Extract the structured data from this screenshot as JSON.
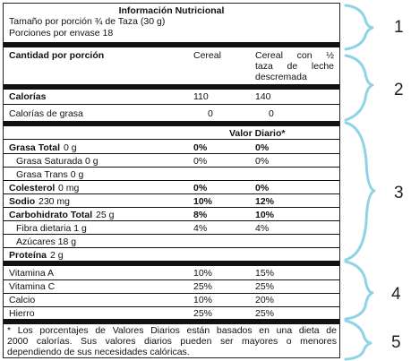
{
  "header": {
    "title": "Información Nutricional",
    "serving_size": "Tamaño por porción ¾ de Taza (30 g)",
    "servings": "Porciones por envase 18"
  },
  "columns": {
    "amount": "Cantidad por porción",
    "cereal": "Cereal",
    "cereal_milk_1": "Cereal con ½",
    "cereal_milk_2": "taza de leche",
    "cereal_milk_3": "descremada"
  },
  "calories": {
    "label": "Calorías",
    "cereal": "110",
    "milk": "140",
    "fat_label": "Calorías de grasa",
    "fat_cereal": "0",
    "fat_milk": "0"
  },
  "daily_value_header": "Valor Diario*",
  "nutrients": [
    {
      "name": "Grasa Total",
      "amount": "0 g",
      "cereal": "0%",
      "milk": "0%",
      "bold": true,
      "indent": false
    },
    {
      "name": "Grasa Saturada 0 g",
      "amount": "",
      "cereal": "0%",
      "milk": "0%",
      "bold": false,
      "indent": true
    },
    {
      "name": "Grasa Trans 0 g",
      "amount": "",
      "cereal": "",
      "milk": "",
      "bold": false,
      "indent": true
    },
    {
      "name": "Colesterol",
      "amount": "0 mg",
      "cereal": "0%",
      "milk": "0%",
      "bold": true,
      "indent": false
    },
    {
      "name": "Sodio",
      "amount": "230 mg",
      "cereal": "10%",
      "milk": "12%",
      "bold": true,
      "indent": false
    },
    {
      "name": "Carbohidrato Total",
      "amount": "25 g",
      "cereal": "8%",
      "milk": "10%",
      "bold": true,
      "indent": false
    },
    {
      "name": "Fibra dietaria 1 g",
      "amount": "",
      "cereal": "4%",
      "milk": "4%",
      "bold": false,
      "indent": true
    },
    {
      "name": "Azúcares 18 g",
      "amount": "",
      "cereal": "",
      "milk": "",
      "bold": false,
      "indent": true
    },
    {
      "name": "Proteína",
      "amount": "2 g",
      "cereal": "",
      "milk": "",
      "bold": true,
      "indent": false
    }
  ],
  "vitamins": [
    {
      "name": "Vitamina A",
      "cereal": "10%",
      "milk": "15%"
    },
    {
      "name": "Vitamina C",
      "cereal": "25%",
      "milk": "25%"
    },
    {
      "name": "Calcio",
      "cereal": "10%",
      "milk": "20%"
    },
    {
      "name": "Hierro",
      "cereal": "25%",
      "milk": "25%"
    }
  ],
  "footnote": {
    "line1": "* Los porcentajes de Valores Diarios están basados en una dieta de",
    "line2": "2000 calorías. Sus valores diarios pueden ser mayores o menores",
    "line3": "dependiendo de sus necesidades calóricas."
  },
  "annotations": [
    "1",
    "2",
    "3",
    "4",
    "5"
  ],
  "colors": {
    "brace": "#8fd3e6",
    "text": "#111111"
  }
}
